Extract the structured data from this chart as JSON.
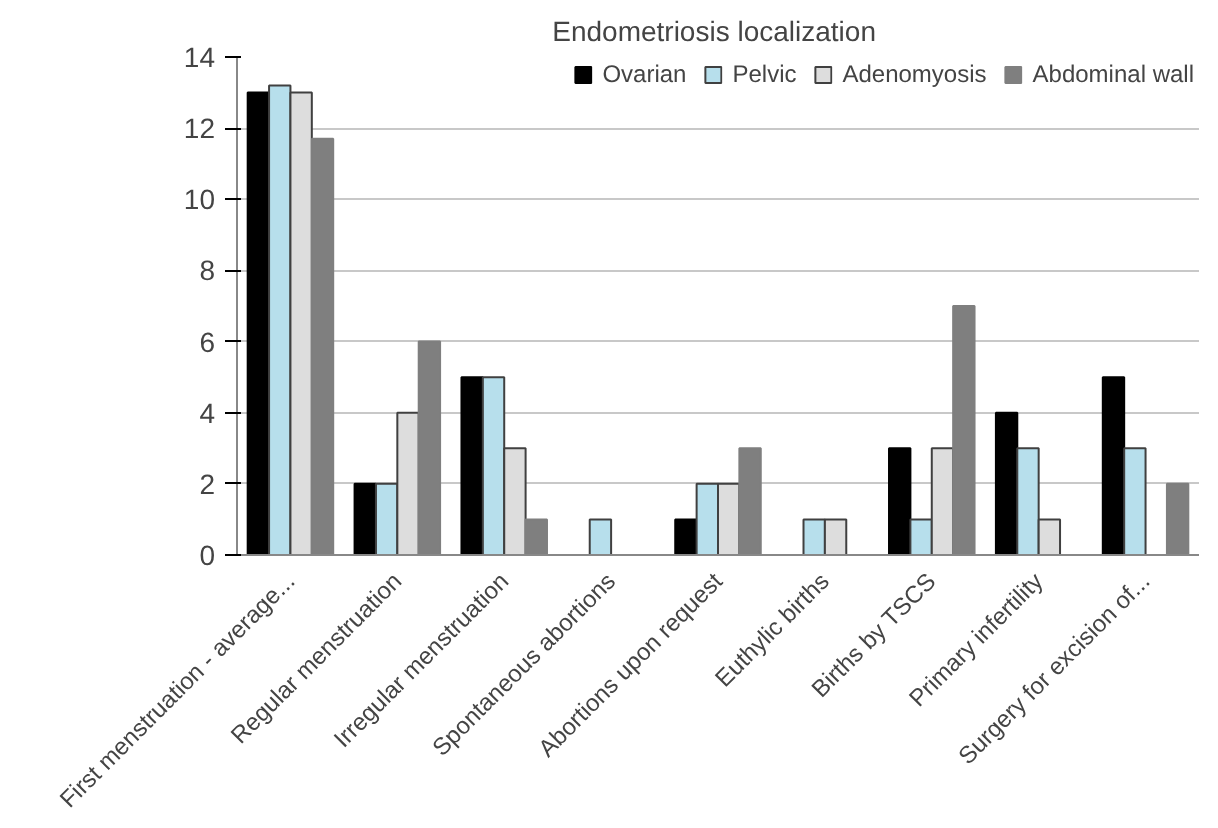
{
  "chart_data": {
    "type": "bar",
    "title": "Endometriosis  localization",
    "categories": [
      "First menstruation - average...",
      "Regular menstruation",
      "Irregular menstruation",
      "Spontaneous abortions",
      "Abortions upon request",
      "Euthylic births",
      "Births by TSCS",
      "Primary infertility",
      "Surgery for excision of..."
    ],
    "series": [
      {
        "name": "Ovarian",
        "color": "#000000",
        "values": [
          13,
          2,
          5,
          null,
          1,
          null,
          3,
          4,
          5
        ]
      },
      {
        "name": "Pelvic",
        "color": "#b7dfec",
        "values": [
          13.2,
          2,
          5,
          1,
          2,
          1,
          1,
          3,
          3
        ]
      },
      {
        "name": "Adenomyosis",
        "color": "#dddddd",
        "values": [
          13,
          4,
          3,
          null,
          2,
          1,
          3,
          1,
          null
        ]
      },
      {
        "name": "Abdominal wall",
        "color": "#7f7f7f",
        "values": [
          11.7,
          6,
          1,
          null,
          3,
          null,
          7,
          null,
          2
        ]
      }
    ],
    "ylim": [
      0,
      14
    ],
    "yticks": [
      0,
      2,
      4,
      6,
      8,
      10,
      12,
      14
    ],
    "grid": "y",
    "legend": "top right"
  }
}
